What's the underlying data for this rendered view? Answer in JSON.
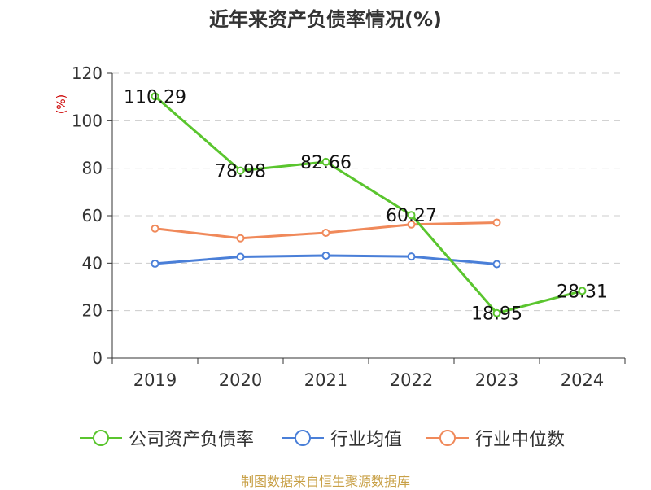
{
  "title": "近年来资产负债率情况(%)",
  "source": "制图数据来自恒生聚源数据库",
  "chart_data": {
    "type": "line",
    "title": "近年来资产负债率情况(%)",
    "ylabel": "(%)",
    "xlabel": "",
    "ylim": [
      0,
      120
    ],
    "yticks": [
      0,
      20,
      40,
      60,
      80,
      100,
      120
    ],
    "categories": [
      "2019",
      "2020",
      "2021",
      "2022",
      "2023",
      "2024"
    ],
    "grid": true,
    "legend_position": "bottom",
    "series": [
      {
        "name": "公司资产负债率",
        "color": "#5ac52e",
        "values": [
          110.29,
          78.98,
          82.66,
          60.27,
          18.95,
          28.31
        ],
        "labels": [
          "110.29",
          "78.98",
          "82.66",
          "60.27",
          "18.95",
          "28.31"
        ]
      },
      {
        "name": "行业均值",
        "color": "#4a7fd8",
        "values": [
          39.8,
          42.7,
          43.2,
          42.8,
          39.6,
          null
        ]
      },
      {
        "name": "行业中位数",
        "color": "#f0895a",
        "values": [
          54.6,
          50.5,
          52.8,
          56.3,
          57.1,
          null
        ]
      }
    ]
  },
  "colors": {
    "axis": "#333333",
    "grid": "#cccccc",
    "ylabel": "#cc0000"
  }
}
